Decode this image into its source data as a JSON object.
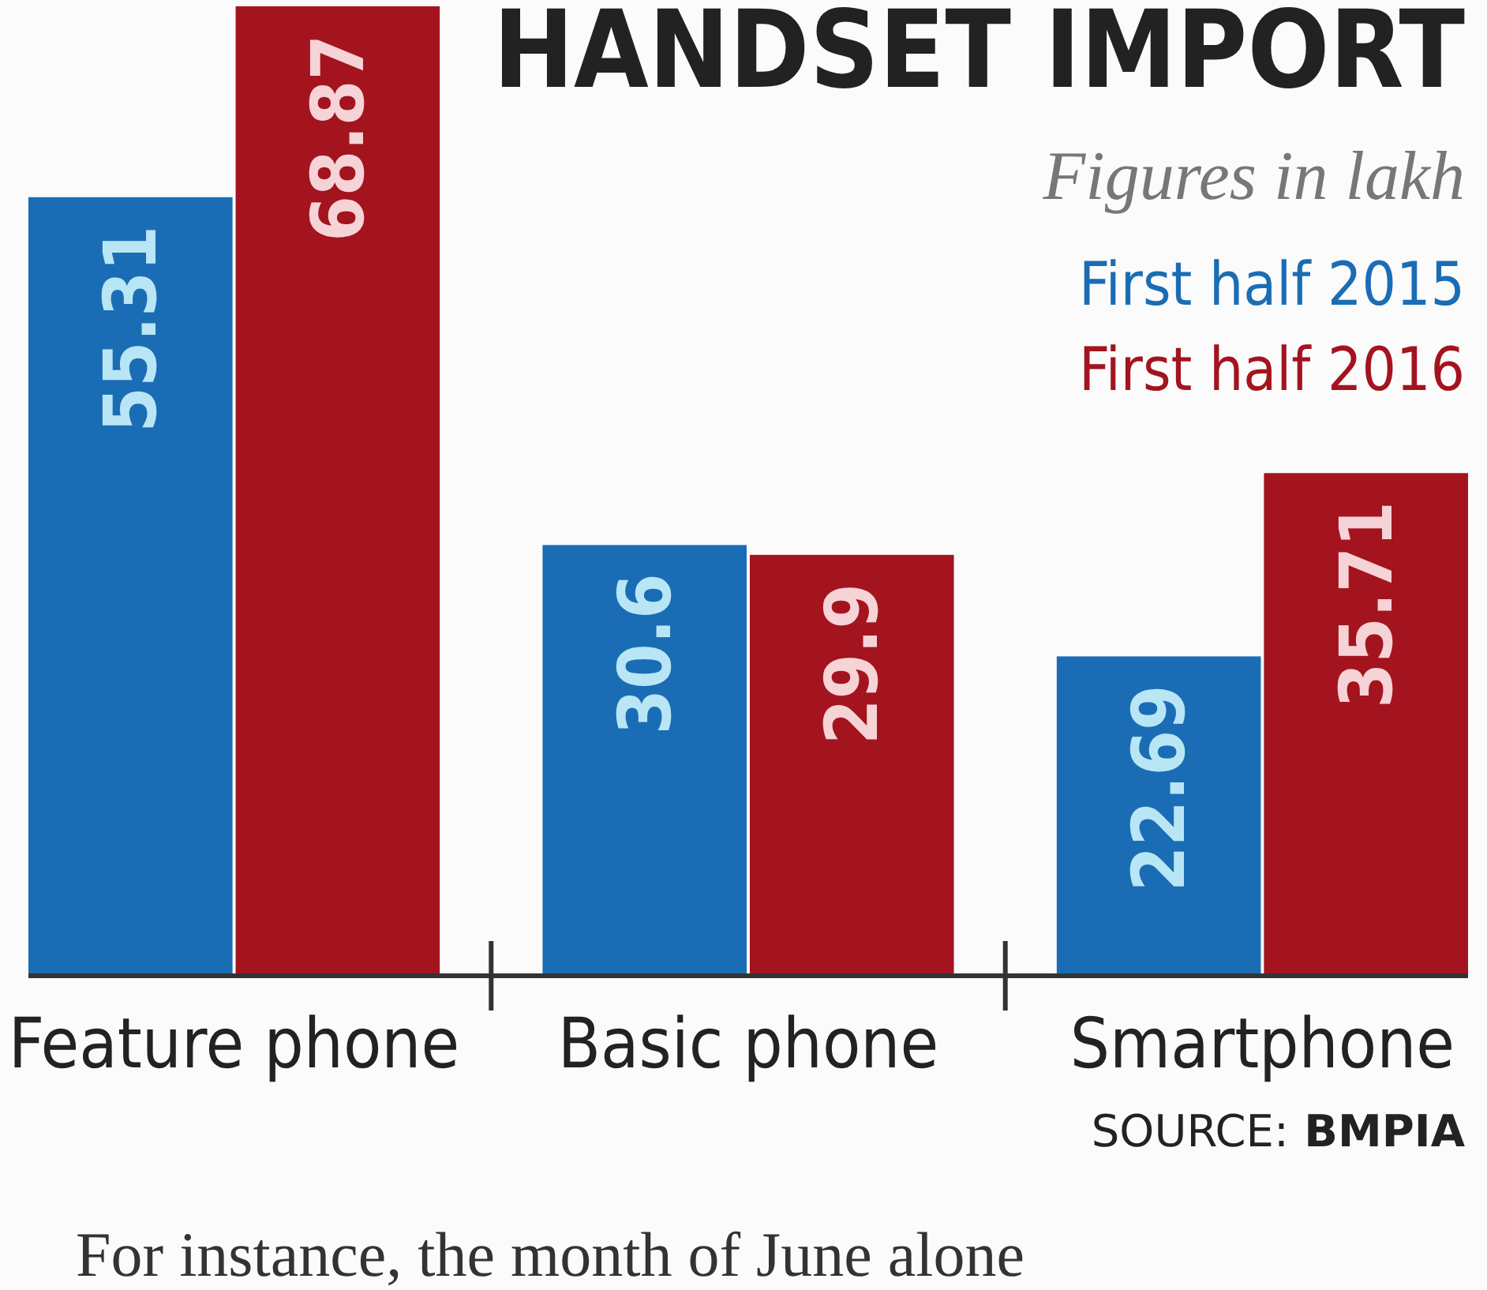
{
  "chart_data": {
    "type": "bar",
    "title": "HANDSET IMPORT",
    "subtitle": "Figures in lakh",
    "categories": [
      "Feature phone",
      "Basic phone",
      "Smartphone"
    ],
    "series": [
      {
        "name": "First half 2015",
        "color": "#1a6db5",
        "values": [
          55.31,
          30.6,
          22.69
        ]
      },
      {
        "name": "First half 2016",
        "color": "#a3141f",
        "values": [
          68.87,
          29.9,
          35.71
        ]
      }
    ],
    "data_labels": true,
    "legend": "top right",
    "annotations": [
      "SOURCE: BMPIA",
      "For instance, the month of June alone"
    ]
  }
}
